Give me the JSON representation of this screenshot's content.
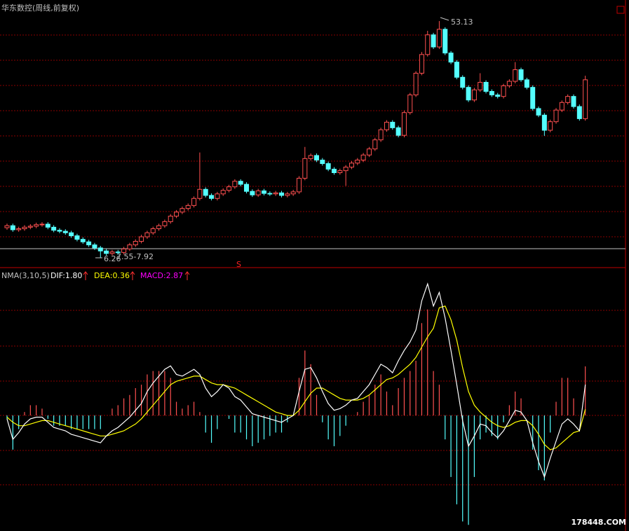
{
  "chart_data": [
    {
      "type": "candlestick",
      "title": "华东数控(周线,前复权)",
      "up_color": "#ff5050",
      "down_color": "#54ffff",
      "ylim": [
        4.3,
        57.3
      ],
      "annotations": [
        "53.13",
        "6.26",
        "7.55-7.92",
        "S"
      ],
      "ohlc": [
        [
          12.2,
          13.0,
          11.8,
          12.6
        ],
        [
          12.6,
          13.0,
          11.4,
          11.8
        ],
        [
          11.8,
          12.4,
          11.4,
          12.0
        ],
        [
          12.0,
          12.7,
          11.6,
          12.3
        ],
        [
          12.3,
          12.9,
          11.9,
          12.5
        ],
        [
          12.5,
          13.2,
          12.1,
          12.8
        ],
        [
          12.8,
          13.3,
          12.4,
          12.9
        ],
        [
          12.9,
          13.3,
          11.9,
          12.3
        ],
        [
          12.3,
          12.7,
          11.3,
          11.7
        ],
        [
          11.7,
          12.1,
          11.1,
          11.5
        ],
        [
          11.5,
          11.9,
          10.8,
          11.2
        ],
        [
          11.2,
          11.6,
          10.2,
          10.6
        ],
        [
          10.6,
          11.0,
          9.5,
          9.9
        ],
        [
          9.9,
          10.3,
          9.0,
          9.4
        ],
        [
          9.4,
          9.8,
          8.4,
          8.8
        ],
        [
          8.8,
          9.2,
          7.8,
          8.2
        ],
        [
          8.2,
          8.6,
          6.26,
          7.6
        ],
        [
          7.6,
          8.0,
          6.7,
          7.1
        ],
        [
          7.1,
          7.8,
          6.7,
          7.4
        ],
        [
          7.4,
          7.8,
          6.9,
          7.3
        ],
        [
          7.3,
          8.4,
          6.9,
          8.0
        ],
        [
          8.0,
          9.2,
          7.6,
          8.8
        ],
        [
          8.8,
          9.9,
          8.4,
          9.5
        ],
        [
          9.5,
          10.8,
          9.1,
          10.4
        ],
        [
          10.4,
          11.6,
          10.0,
          11.2
        ],
        [
          11.2,
          12.4,
          10.8,
          12.0
        ],
        [
          12.0,
          13.0,
          11.6,
          12.6
        ],
        [
          12.6,
          13.8,
          12.2,
          13.4
        ],
        [
          13.4,
          14.9,
          13.0,
          14.5
        ],
        [
          14.5,
          15.7,
          14.1,
          15.3
        ],
        [
          15.3,
          16.4,
          14.9,
          16.0
        ],
        [
          16.0,
          17.0,
          15.6,
          16.6
        ],
        [
          16.6,
          18.4,
          16.2,
          18.0
        ],
        [
          18.0,
          27.1,
          17.6,
          19.8
        ],
        [
          19.8,
          20.2,
          18.2,
          18.6
        ],
        [
          18.6,
          19.0,
          17.6,
          18.0
        ],
        [
          18.0,
          19.3,
          17.6,
          18.9
        ],
        [
          18.9,
          20.0,
          18.5,
          19.6
        ],
        [
          19.6,
          20.7,
          19.2,
          20.3
        ],
        [
          20.3,
          21.8,
          19.9,
          21.4
        ],
        [
          21.4,
          21.8,
          20.4,
          20.8
        ],
        [
          20.8,
          21.2,
          19.0,
          19.4
        ],
        [
          19.4,
          19.8,
          18.3,
          18.7
        ],
        [
          18.7,
          19.9,
          18.3,
          19.5
        ],
        [
          19.5,
          19.9,
          18.6,
          19.0
        ],
        [
          19.0,
          19.4,
          18.5,
          18.9
        ],
        [
          18.9,
          19.5,
          18.5,
          19.1
        ],
        [
          19.1,
          19.5,
          18.2,
          18.6
        ],
        [
          18.6,
          19.3,
          18.2,
          18.9
        ],
        [
          18.9,
          19.7,
          18.5,
          19.3
        ],
        [
          19.3,
          22.4,
          18.9,
          22.0
        ],
        [
          22.0,
          28.2,
          21.6,
          25.9
        ],
        [
          25.9,
          26.9,
          25.5,
          26.5
        ],
        [
          26.5,
          26.9,
          25.2,
          25.6
        ],
        [
          25.6,
          26.0,
          24.5,
          24.9
        ],
        [
          24.9,
          25.3,
          23.4,
          23.8
        ],
        [
          23.8,
          24.2,
          22.7,
          23.1
        ],
        [
          23.1,
          23.9,
          22.7,
          23.5
        ],
        [
          23.5,
          24.6,
          20.5,
          24.2
        ],
        [
          24.2,
          25.4,
          23.8,
          25.0
        ],
        [
          25.0,
          26.0,
          24.6,
          25.6
        ],
        [
          25.6,
          27.0,
          25.2,
          26.6
        ],
        [
          26.6,
          28.2,
          26.2,
          27.8
        ],
        [
          27.8,
          30.0,
          27.4,
          29.6
        ],
        [
          29.6,
          32.0,
          29.2,
          31.6
        ],
        [
          31.6,
          33.5,
          31.2,
          33.1
        ],
        [
          33.1,
          33.5,
          31.6,
          32.0
        ],
        [
          32.0,
          32.4,
          30.1,
          30.5
        ],
        [
          30.5,
          35.4,
          30.1,
          35.0
        ],
        [
          35.0,
          38.9,
          34.6,
          38.5
        ],
        [
          38.5,
          43.2,
          38.1,
          42.8
        ],
        [
          42.8,
          47.0,
          42.4,
          46.5
        ],
        [
          46.5,
          51.2,
          46.1,
          50.4
        ],
        [
          50.4,
          50.8,
          47.6,
          48.0
        ],
        [
          48.0,
          53.13,
          47.6,
          51.5
        ],
        [
          51.5,
          51.9,
          46.4,
          46.8
        ],
        [
          46.8,
          47.2,
          44.6,
          45.0
        ],
        [
          45.0,
          45.4,
          41.6,
          42.0
        ],
        [
          42.0,
          42.4,
          39.6,
          40.0
        ],
        [
          40.0,
          40.4,
          37.1,
          37.5
        ],
        [
          37.5,
          39.9,
          37.1,
          39.5
        ],
        [
          39.5,
          42.8,
          39.1,
          41.0
        ],
        [
          41.0,
          41.4,
          38.8,
          39.2
        ],
        [
          39.2,
          39.6,
          38.1,
          38.5
        ],
        [
          38.5,
          38.9,
          37.8,
          38.2
        ],
        [
          38.2,
          40.7,
          37.8,
          40.3
        ],
        [
          40.3,
          41.6,
          39.9,
          41.2
        ],
        [
          41.2,
          45.0,
          40.8,
          43.5
        ],
        [
          43.5,
          43.9,
          41.1,
          41.5
        ],
        [
          41.5,
          41.9,
          39.6,
          40.0
        ],
        [
          40.0,
          40.4,
          35.4,
          35.8
        ],
        [
          35.8,
          36.2,
          34.1,
          34.5
        ],
        [
          34.5,
          34.9,
          30.4,
          31.5
        ],
        [
          31.5,
          33.6,
          31.1,
          33.2
        ],
        [
          33.2,
          35.9,
          32.8,
          35.5
        ],
        [
          35.5,
          37.4,
          35.1,
          37.0
        ],
        [
          37.0,
          38.6,
          36.6,
          38.2
        ],
        [
          38.2,
          38.6,
          35.8,
          36.2
        ],
        [
          36.2,
          36.6,
          33.4,
          33.8
        ],
        [
          33.8,
          42.3,
          33.4,
          41.5
        ]
      ]
    },
    {
      "type": "macd",
      "title": "NMA(3,10,5)",
      "ylim": [
        -6.76,
        8.65
      ],
      "watermark": "178448.COM",
      "series": [
        {
          "name": "DIF:1.80",
          "color": "#ffffff",
          "values": [
            -0.2,
            -1.4,
            -1.0,
            -0.5,
            -0.2,
            -0.1,
            -0.1,
            -0.4,
            -0.7,
            -0.8,
            -0.9,
            -1.1,
            -1.2,
            -1.3,
            -1.4,
            -1.5,
            -1.6,
            -1.2,
            -0.9,
            -0.7,
            -0.4,
            -0.1,
            0.3,
            0.7,
            1.4,
            1.9,
            2.3,
            2.7,
            2.9,
            2.4,
            2.3,
            2.5,
            2.7,
            2.4,
            1.6,
            1.1,
            1.4,
            1.8,
            1.6,
            1.1,
            0.9,
            0.5,
            0.1,
            0.0,
            -0.1,
            -0.2,
            -0.3,
            -0.4,
            -0.2,
            0.0,
            1.4,
            2.7,
            2.8,
            2.2,
            1.4,
            0.7,
            0.3,
            0.4,
            0.6,
            0.9,
            1.0,
            1.4,
            1.8,
            2.4,
            3.0,
            2.8,
            2.5,
            3.2,
            3.8,
            4.3,
            5.0,
            6.7,
            7.7,
            6.4,
            7.2,
            5.7,
            3.8,
            1.8,
            -0.3,
            -1.8,
            -1.2,
            -0.5,
            -0.6,
            -1.0,
            -1.3,
            -0.9,
            -0.3,
            0.3,
            0.2,
            -0.3,
            -1.6,
            -2.7,
            -3.6,
            -2.5,
            -1.5,
            -0.5,
            -0.2,
            -0.5,
            -0.9,
            1.8
          ]
        },
        {
          "name": "DEA:0.36",
          "color": "#ffff00",
          "values": [
            -0.1,
            -0.4,
            -0.6,
            -0.6,
            -0.5,
            -0.4,
            -0.3,
            -0.3,
            -0.4,
            -0.5,
            -0.6,
            -0.7,
            -0.8,
            -0.9,
            -1.0,
            -1.1,
            -1.2,
            -1.2,
            -1.1,
            -1.0,
            -0.9,
            -0.7,
            -0.5,
            -0.2,
            0.2,
            0.6,
            1.0,
            1.4,
            1.8,
            2.0,
            2.1,
            2.2,
            2.3,
            2.3,
            2.1,
            1.9,
            1.8,
            1.8,
            1.7,
            1.6,
            1.4,
            1.2,
            1.0,
            0.8,
            0.6,
            0.4,
            0.2,
            0.1,
            0.0,
            0.0,
            0.3,
            0.8,
            1.3,
            1.6,
            1.6,
            1.4,
            1.2,
            1.0,
            0.9,
            0.9,
            0.9,
            1.0,
            1.2,
            1.5,
            1.8,
            2.1,
            2.2,
            2.4,
            2.7,
            3.0,
            3.4,
            4.0,
            4.6,
            5.1,
            6.3,
            6.4,
            5.6,
            4.4,
            2.8,
            1.4,
            0.6,
            0.2,
            -0.1,
            -0.4,
            -0.6,
            -0.7,
            -0.6,
            -0.4,
            -0.3,
            -0.3,
            -0.6,
            -1.1,
            -1.7,
            -2.0,
            -1.9,
            -1.6,
            -1.3,
            -1.0,
            -0.9,
            0.36
          ]
        },
        {
          "name": "MACD:2.87",
          "color": "#ff00ff",
          "up_color": "#ff5050",
          "down_color": "#54ffff",
          "values": [
            -0.2,
            -2.0,
            -0.8,
            0.2,
            0.6,
            0.6,
            0.4,
            -0.2,
            -0.6,
            -0.6,
            -0.6,
            -0.8,
            -0.8,
            -0.8,
            -0.8,
            -0.8,
            -0.8,
            0.0,
            0.4,
            0.6,
            1.0,
            1.2,
            1.6,
            1.8,
            2.4,
            2.6,
            2.6,
            2.6,
            2.2,
            0.8,
            0.4,
            0.6,
            0.8,
            0.2,
            -1.0,
            -1.6,
            -0.8,
            0.0,
            -0.2,
            -1.0,
            -1.0,
            -1.4,
            -1.8,
            -1.6,
            -1.4,
            -1.2,
            -1.0,
            -1.0,
            -0.4,
            0.0,
            2.2,
            3.8,
            3.0,
            1.2,
            -0.4,
            -1.4,
            -1.8,
            -1.2,
            -0.6,
            0.0,
            0.2,
            0.8,
            1.2,
            1.8,
            2.4,
            1.4,
            0.6,
            1.6,
            2.2,
            2.6,
            3.2,
            5.4,
            6.2,
            2.6,
            1.8,
            -1.4,
            -3.6,
            -5.2,
            -6.2,
            -6.4,
            -3.6,
            -1.4,
            -1.0,
            -1.2,
            -1.4,
            -0.4,
            0.6,
            1.4,
            1.0,
            0.0,
            -2.0,
            -3.2,
            -3.8,
            -1.0,
            0.8,
            2.2,
            2.2,
            1.0,
            0.0,
            2.87
          ]
        }
      ]
    }
  ]
}
